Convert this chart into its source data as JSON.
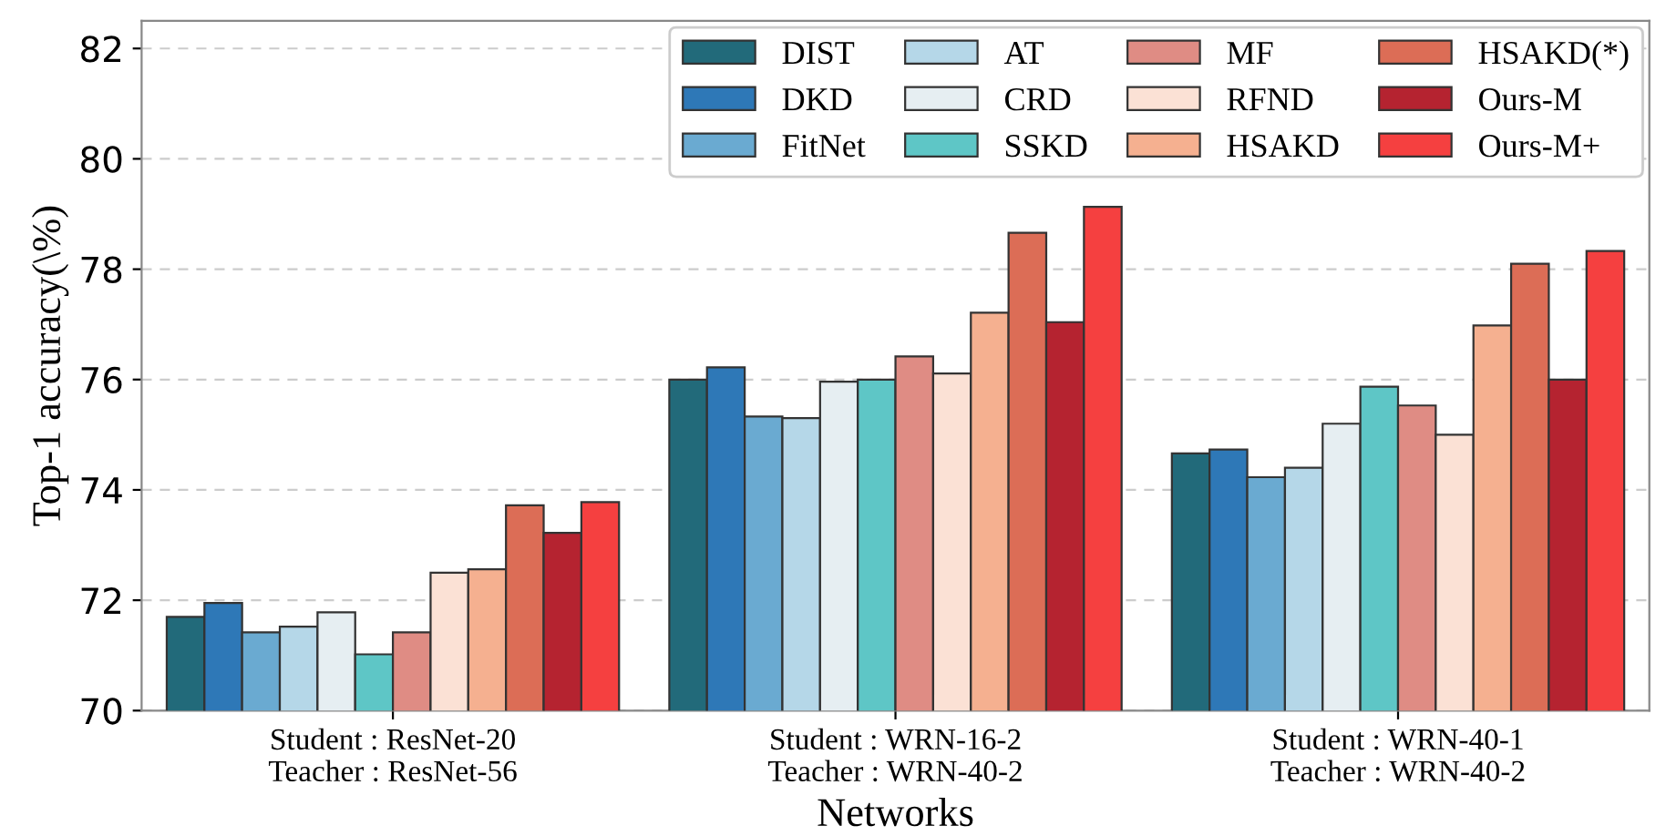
{
  "chart_data": {
    "type": "bar",
    "xlabel": "Networks",
    "ylabel": "Top-1 accuracy(\\%)",
    "categories": [
      "Student : ResNet-20\nTeacher : ResNet-56",
      "Student : WRN-16-2\nTeacher : WRN-40-2",
      "Student : WRN-40-1\nTeacher : WRN-40-2"
    ],
    "series": [
      {
        "name": "DIST",
        "color": "#226a7a",
        "values": [
          71.7,
          76.0,
          74.66
        ]
      },
      {
        "name": "DKD",
        "color": "#2e78b7",
        "values": [
          71.95,
          76.22,
          74.73
        ]
      },
      {
        "name": "FitNet",
        "color": "#6aaad1",
        "values": [
          71.42,
          75.33,
          74.23
        ]
      },
      {
        "name": "AT",
        "color": "#b5d7e8",
        "values": [
          71.52,
          75.3,
          74.4
        ]
      },
      {
        "name": "CRD",
        "color": "#e6eef2",
        "values": [
          71.78,
          75.96,
          75.2
        ]
      },
      {
        "name": "SSKD",
        "color": "#5ec6c6",
        "values": [
          71.02,
          76.0,
          75.87
        ]
      },
      {
        "name": "MF",
        "color": "#df8c84",
        "values": [
          71.42,
          76.42,
          75.53
        ]
      },
      {
        "name": "RFND",
        "color": "#fbe1d5",
        "values": [
          72.5,
          76.11,
          75.0
        ]
      },
      {
        "name": "HSAKD",
        "color": "#f5b090",
        "values": [
          72.56,
          77.21,
          76.98
        ]
      },
      {
        "name": "HSAKD(*)",
        "color": "#dc6d56",
        "values": [
          73.72,
          78.66,
          78.1
        ]
      },
      {
        "name": "Ours-M",
        "color": "#b52330",
        "values": [
          73.22,
          77.04,
          76.0
        ]
      },
      {
        "name": "Ours-M+",
        "color": "#f54040",
        "values": [
          73.78,
          79.13,
          78.33
        ]
      }
    ],
    "ylim": [
      70,
      82.5
    ],
    "yticks": [
      70,
      72,
      74,
      76,
      78,
      80,
      82
    ],
    "grid": "y",
    "legend": "top right"
  }
}
